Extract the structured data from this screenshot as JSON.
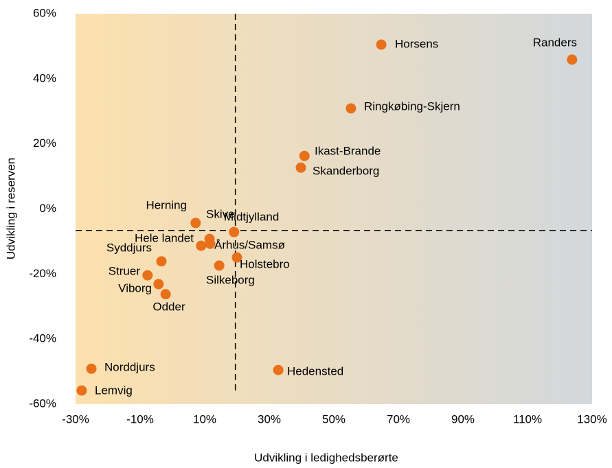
{
  "chart_data": {
    "type": "scatter",
    "x_label": "Udvikling i ledighedsberørte",
    "y_label": "Udvikling i reserven",
    "color": "#e8701a",
    "xlim": [
      -30,
      130
    ],
    "ylim": [
      -60,
      60
    ],
    "xticks": [
      {
        "value": -30,
        "label": "-30%"
      },
      {
        "value": -10,
        "label": "-10%"
      },
      {
        "value": 10,
        "label": "10%"
      },
      {
        "value": 30,
        "label": "30%"
      },
      {
        "value": 50,
        "label": "50%"
      },
      {
        "value": 70,
        "label": "70%"
      },
      {
        "value": 90,
        "label": "90%"
      },
      {
        "value": 110,
        "label": "110%"
      },
      {
        "value": 130,
        "label": "130%"
      }
    ],
    "yticks": [
      {
        "value": -60,
        "label": "-60%"
      },
      {
        "value": -40,
        "label": "-40%"
      },
      {
        "value": -20,
        "label": "-20%"
      },
      {
        "value": 0,
        "label": "0%"
      },
      {
        "value": 20,
        "label": "20%"
      },
      {
        "value": 40,
        "label": "40%"
      },
      {
        "value": 60,
        "label": "60%"
      }
    ],
    "reference_lines": {
      "x": 19.5,
      "y": -6.6
    },
    "points": [
      {
        "name": "Horsens",
        "x": 64.7,
        "y": 50.5
      },
      {
        "name": "Randers",
        "x": 123.8,
        "y": 45.9
      },
      {
        "name": "Ringkøbing-Skjern",
        "x": 55.3,
        "y": 30.9
      },
      {
        "name": "Ikast-Brande",
        "x": 40.9,
        "y": 16.3
      },
      {
        "name": "Skanderborg",
        "x": 39.8,
        "y": 12.7
      },
      {
        "name": "Herning",
        "x": 7.2,
        "y": -4.3
      },
      {
        "name": "Skive",
        "x": 11.5,
        "y": -9.2
      },
      {
        "name": "Midtjylland",
        "x": 19.1,
        "y": -7.1
      },
      {
        "name": "Hele landet",
        "x": 8.9,
        "y": -11.3
      },
      {
        "name": "Århus/Samsø",
        "x": 11.7,
        "y": -10.7
      },
      {
        "name": "Syddjurs",
        "x": -3.4,
        "y": -16.1
      },
      {
        "name": "Holstebro",
        "x": 20.0,
        "y": -14.9
      },
      {
        "name": "Silkeborg",
        "x": 14.5,
        "y": -17.4
      },
      {
        "name": "Struer",
        "x": -7.7,
        "y": -20.4
      },
      {
        "name": "Viborg",
        "x": -4.3,
        "y": -23.1
      },
      {
        "name": "Odder",
        "x": -2.1,
        "y": -26.2
      },
      {
        "name": "Hedensted",
        "x": 32.8,
        "y": -49.5
      },
      {
        "name": "Norddjurs",
        "x": -25.1,
        "y": -49.1
      },
      {
        "name": "Lemvig",
        "x": -28.1,
        "y": -55.8
      }
    ]
  }
}
